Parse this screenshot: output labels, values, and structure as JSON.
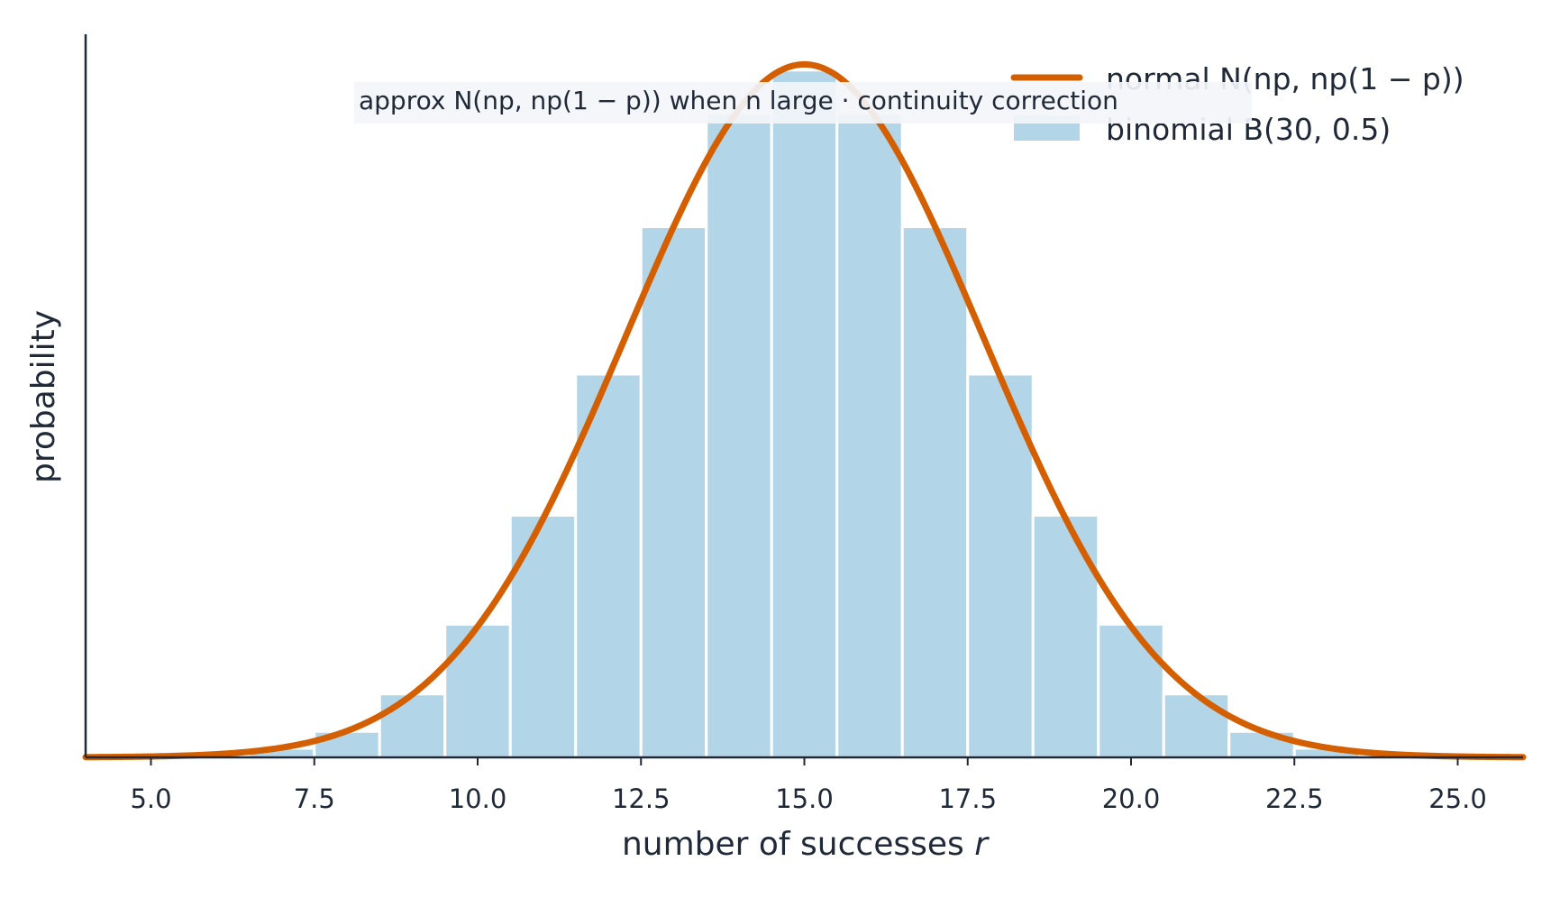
{
  "chart_data": {
    "type": "bar",
    "title": "",
    "xlabel": "number of successes",
    "xlabel_var": "r",
    "ylabel": "probability",
    "xlim": [
      4.0,
      26.0
    ],
    "ylim": [
      0,
      0.152
    ],
    "xticks": [
      "5.0",
      "7.5",
      "10.0",
      "12.5",
      "15.0",
      "17.5",
      "20.0",
      "22.5",
      "25.0"
    ],
    "grid": false,
    "legend_position": "top-right",
    "annotation": "approx N(np, np(1 − p)) when n large  ·  continuity correction",
    "series": [
      {
        "name": "binomial B(30, 0.5)",
        "kind": "bar",
        "color": "#b3d5e8",
        "x": [
          4,
          5,
          6,
          7,
          8,
          9,
          10,
          11,
          12,
          13,
          14,
          15,
          16,
          17,
          18,
          19,
          20,
          21,
          22,
          23,
          24,
          25,
          26
        ],
        "values": [
          2.5e-05,
          0.000133,
          0.000553,
          0.0019,
          0.00545,
          0.01332,
          0.02798,
          0.05088,
          0.08055,
          0.11154,
          0.13544,
          0.14446,
          0.13544,
          0.11154,
          0.08055,
          0.05088,
          0.02798,
          0.01332,
          0.00545,
          0.0019,
          0.000553,
          0.000133,
          2.5e-05
        ]
      },
      {
        "name": "normal N(np, np(1 − p))",
        "kind": "line",
        "color": "#d35f00",
        "mean": 15,
        "variance": 7.5
      }
    ]
  }
}
